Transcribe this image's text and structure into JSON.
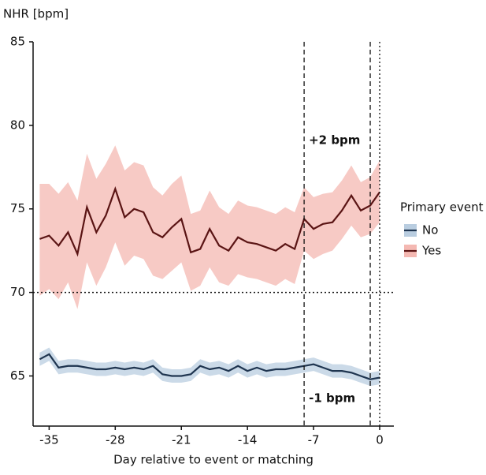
{
  "chart_data": {
    "type": "line",
    "y_label": "NHR [bpm]",
    "x_label": "Day relative to event or matching",
    "x": [
      -36,
      -35,
      -34,
      -33,
      -32,
      -31,
      -30,
      -29,
      -28,
      -27,
      -26,
      -25,
      -24,
      -23,
      -22,
      -21,
      -20,
      -19,
      -18,
      -17,
      -16,
      -15,
      -14,
      -13,
      -12,
      -11,
      -10,
      -9,
      -8,
      -7,
      -6,
      -5,
      -4,
      -3,
      -2,
      -1,
      0
    ],
    "series": [
      {
        "name": "No",
        "color": "#1f3550",
        "band_color": "#b9cde0",
        "values": [
          66.0,
          66.3,
          65.5,
          65.6,
          65.6,
          65.5,
          65.4,
          65.4,
          65.5,
          65.4,
          65.5,
          65.4,
          65.6,
          65.1,
          65.0,
          65.0,
          65.1,
          65.6,
          65.4,
          65.5,
          65.3,
          65.6,
          65.3,
          65.5,
          65.3,
          65.4,
          65.4,
          65.5,
          65.6,
          65.7,
          65.5,
          65.3,
          65.3,
          65.2,
          65.0,
          64.8,
          64.9
        ],
        "lower": [
          65.6,
          65.9,
          65.1,
          65.2,
          65.2,
          65.1,
          65.0,
          65.0,
          65.1,
          65.0,
          65.1,
          65.0,
          65.2,
          64.7,
          64.6,
          64.6,
          64.7,
          65.2,
          65.0,
          65.1,
          64.9,
          65.2,
          64.9,
          65.1,
          64.9,
          65.0,
          65.0,
          65.1,
          65.2,
          65.3,
          65.1,
          64.9,
          64.9,
          64.8,
          64.6,
          64.4,
          64.5
        ],
        "upper": [
          66.4,
          66.7,
          65.9,
          66.0,
          66.0,
          65.9,
          65.8,
          65.8,
          65.9,
          65.8,
          65.9,
          65.8,
          66.0,
          65.5,
          65.4,
          65.4,
          65.5,
          66.0,
          65.8,
          65.9,
          65.7,
          66.0,
          65.7,
          65.9,
          65.7,
          65.8,
          65.8,
          65.9,
          66.0,
          66.1,
          65.9,
          65.7,
          65.7,
          65.6,
          65.4,
          65.2,
          65.3
        ]
      },
      {
        "name": "Yes",
        "color": "#5a1414",
        "band_color": "#f4b8b2",
        "values": [
          73.2,
          73.4,
          72.8,
          73.6,
          72.3,
          75.1,
          73.6,
          74.6,
          76.2,
          74.5,
          75.0,
          74.8,
          73.6,
          73.3,
          73.9,
          74.4,
          72.4,
          72.6,
          73.8,
          72.8,
          72.5,
          73.3,
          73.0,
          72.9,
          72.7,
          72.5,
          72.9,
          72.6,
          74.4,
          73.8,
          74.1,
          74.2,
          74.9,
          75.8,
          74.9,
          75.2,
          76.0
        ],
        "lower": [
          69.8,
          70.2,
          69.6,
          70.6,
          69.0,
          71.8,
          70.4,
          71.5,
          73.0,
          71.6,
          72.2,
          72.0,
          71.0,
          70.8,
          71.3,
          71.8,
          70.1,
          70.4,
          71.5,
          70.6,
          70.4,
          71.1,
          70.9,
          70.8,
          70.6,
          70.4,
          70.8,
          70.5,
          72.5,
          72.0,
          72.3,
          72.5,
          73.2,
          74.0,
          73.3,
          73.5,
          74.2
        ],
        "upper": [
          76.5,
          76.5,
          75.9,
          76.6,
          75.5,
          78.3,
          76.8,
          77.7,
          78.8,
          77.3,
          77.8,
          77.6,
          76.3,
          75.8,
          76.5,
          77.0,
          74.7,
          74.9,
          76.1,
          75.1,
          74.7,
          75.5,
          75.2,
          75.1,
          74.9,
          74.7,
          75.1,
          74.8,
          76.3,
          75.7,
          75.9,
          76.0,
          76.7,
          77.6,
          76.6,
          76.9,
          77.9
        ]
      }
    ],
    "xlim": [
      -36.7,
      1.5
    ],
    "xticks": [
      -35,
      -28,
      -21,
      -14,
      -7,
      0
    ],
    "ylim": [
      62,
      85
    ],
    "yticks": [
      65,
      70,
      75,
      80,
      85
    ],
    "vlines": [
      {
        "x": -8,
        "style": "dashed"
      },
      {
        "x": -1,
        "style": "dashed"
      },
      {
        "x": 0,
        "style": "dotted"
      }
    ],
    "hlines": [
      {
        "y": 70,
        "style": "dotted"
      }
    ],
    "annotations": [
      "+2 bpm",
      "-1 bpm"
    ],
    "legend_title": "Primary event",
    "legend_position": "right"
  }
}
